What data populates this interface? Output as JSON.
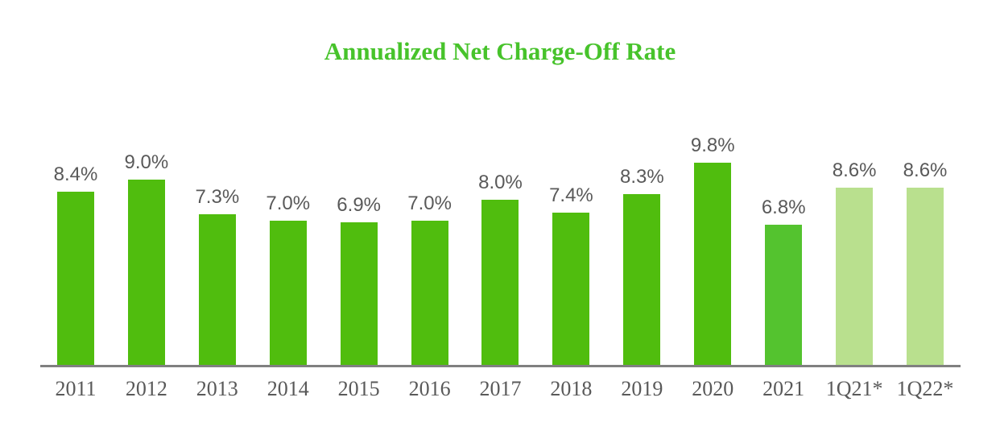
{
  "chart_data": {
    "type": "bar",
    "title": "Annualized Net Charge-Off Rate",
    "categories": [
      "2011",
      "2012",
      "2013",
      "2014",
      "2015",
      "2016",
      "2017",
      "2018",
      "2019",
      "2020",
      "2021",
      "1Q21*",
      "1Q22*"
    ],
    "values": [
      8.4,
      9.0,
      7.3,
      7.0,
      6.9,
      7.0,
      8.0,
      7.4,
      8.3,
      9.8,
      6.8,
      8.6,
      8.6
    ],
    "value_labels": [
      "8.4%",
      "9.0%",
      "7.3%",
      "7.0%",
      "6.9%",
      "7.0%",
      "8.0%",
      "7.4%",
      "8.3%",
      "9.8%",
      "6.8%",
      "8.6%",
      "8.6%"
    ],
    "bar_color_keys": [
      "standard",
      "standard",
      "standard",
      "standard",
      "standard",
      "standard",
      "standard",
      "standard",
      "standard",
      "standard",
      "current_year",
      "interim",
      "interim"
    ],
    "xlabel": "",
    "ylabel": "",
    "ylim": [
      0,
      10.6
    ],
    "grid": false,
    "legend_position": "none",
    "colors": {
      "standard": "#50BD0E",
      "current_year": "#54C32F",
      "interim": "#B9E08E",
      "title": "#47C32B",
      "data_label": "#595959",
      "category_label": "#595959",
      "axis_line": "#808080"
    }
  }
}
